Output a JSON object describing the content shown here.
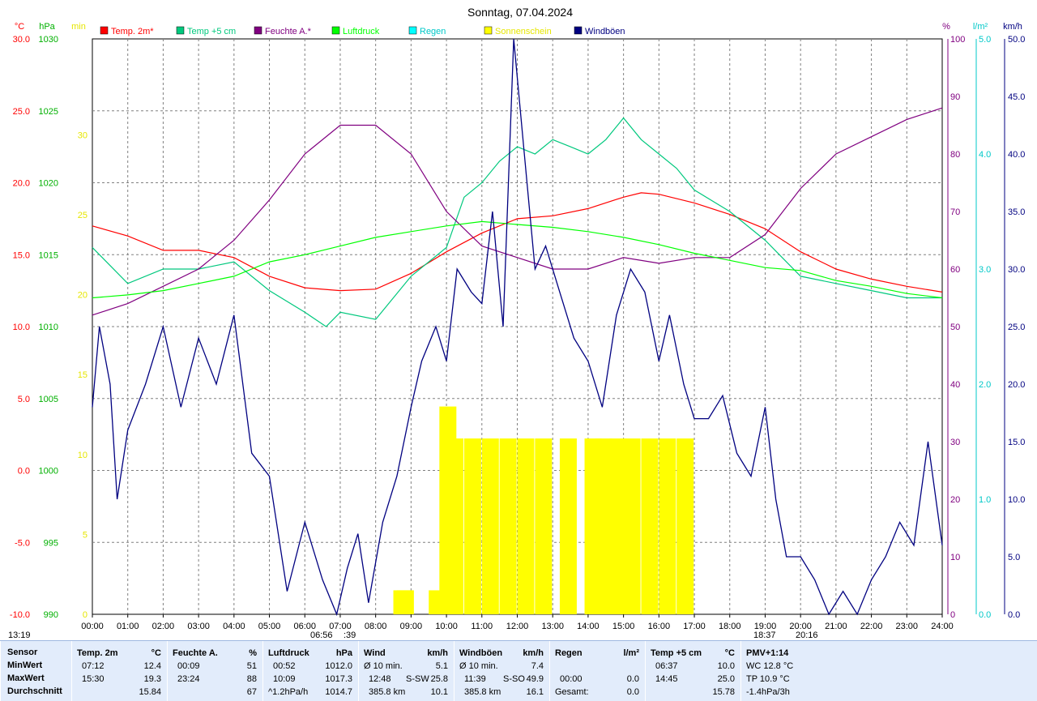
{
  "title": "Sonntag, 07.04.2024",
  "axes": {
    "temp": {
      "unit": "°C",
      "ticks": [
        "30.0",
        "25.0",
        "20.0",
        "15.0",
        "10.0",
        "5.0",
        "0.0",
        "-5.0",
        "-10.0"
      ],
      "color": "#ff0000"
    },
    "pressure": {
      "unit": "hPa",
      "ticks": [
        "1030",
        "1025",
        "1020",
        "1015",
        "1010",
        "1005",
        "1000",
        "995",
        "990"
      ],
      "color": "#00b000"
    },
    "sun": {
      "unit": "min",
      "ticks": [
        "30",
        "25",
        "20",
        "15",
        "10",
        "5",
        "0"
      ],
      "color": "#e6e600"
    },
    "humidity": {
      "unit": "%",
      "ticks": [
        "100",
        "90",
        "80",
        "70",
        "60",
        "50",
        "40",
        "30",
        "20",
        "10",
        "0"
      ],
      "color": "#800080"
    },
    "rain": {
      "unit": "l/m²",
      "ticks": [
        "5.0",
        "4.0",
        "3.0",
        "2.0",
        "1.0",
        "0.0"
      ],
      "color": "#00c8c8"
    },
    "wind": {
      "unit": "km/h",
      "ticks": [
        "50.0",
        "45.0",
        "40.0",
        "35.0",
        "30.0",
        "25.0",
        "20.0",
        "15.0",
        "10.0",
        "5.0",
        "0.0"
      ],
      "color": "#000080"
    }
  },
  "time_ticks": [
    "00:00",
    "01:00",
    "02:00",
    "03:00",
    "04:00",
    "05:00",
    "06:00",
    "07:00",
    "08:00",
    "09:00",
    "10:00",
    "11:00",
    "12:00",
    "13:00",
    "14:00",
    "15:00",
    "16:00",
    "17:00",
    "18:00",
    "19:00",
    "20:00",
    "21:00",
    "22:00",
    "23:00",
    "24:00"
  ],
  "time_markers": {
    "sunrise": "06:56",
    "sunrise_tail": ":39",
    "moon": "18:37",
    "sunset": "20:16",
    "left": "13:19"
  },
  "legend": [
    {
      "label": "Temp. 2m*",
      "color": "#ff0000"
    },
    {
      "label": "Temp +5 cm",
      "color": "#00c87d"
    },
    {
      "label": "Feuchte A.*",
      "color": "#800080"
    },
    {
      "label": "Luftdruck",
      "color": "#00ff00"
    },
    {
      "label": "Regen",
      "color": "#00ffff"
    },
    {
      "label": "Sonnenschein",
      "color": "#ffff00"
    },
    {
      "label": "Windböen",
      "color": "#000080"
    }
  ],
  "chart_data": {
    "type": "line",
    "x_unit": "hours",
    "series": [
      {
        "name": "Temp. 2m*",
        "axis": "°C",
        "color": "#ff0000",
        "x": [
          0,
          1,
          2,
          3,
          4,
          5,
          6,
          7,
          8,
          9,
          10,
          11,
          12,
          13,
          14,
          15,
          15.5,
          16,
          17,
          18,
          19,
          20,
          21,
          22,
          23,
          24
        ],
        "y": [
          17.0,
          16.3,
          15.3,
          15.3,
          14.8,
          13.5,
          12.7,
          12.5,
          12.6,
          13.7,
          15.2,
          16.5,
          17.5,
          17.7,
          18.2,
          19.0,
          19.3,
          19.2,
          18.6,
          17.8,
          16.8,
          15.2,
          14.0,
          13.3,
          12.8,
          12.4
        ]
      },
      {
        "name": "Temp +5 cm",
        "axis": "°C",
        "color": "#00c87d",
        "x": [
          0,
          1,
          2,
          3,
          4,
          5,
          6,
          6.6,
          7,
          8,
          9,
          10,
          10.5,
          11,
          11.5,
          12,
          12.5,
          13,
          13.5,
          14,
          14.5,
          15,
          15.5,
          16,
          16.5,
          17,
          18,
          19,
          20,
          21,
          22,
          23,
          24
        ],
        "y": [
          15.5,
          13.0,
          14.0,
          14.0,
          14.5,
          12.5,
          11.0,
          10.0,
          11.0,
          10.5,
          13.5,
          15.5,
          19.0,
          20.0,
          21.5,
          22.5,
          22.0,
          23.0,
          22.5,
          22.0,
          23.0,
          24.5,
          23.0,
          22.0,
          21.0,
          19.5,
          18.0,
          16.0,
          13.5,
          13.0,
          12.5,
          12.0,
          12.0
        ]
      },
      {
        "name": "Feuchte A.*",
        "axis": "%",
        "color": "#800080",
        "x": [
          0,
          1,
          2,
          3,
          4,
          5,
          6,
          7,
          8,
          9,
          10,
          11,
          12,
          13,
          14,
          15,
          16,
          17,
          18,
          19,
          20,
          21,
          22,
          23,
          24
        ],
        "y": [
          52,
          54,
          57,
          60,
          65,
          72,
          80,
          85,
          85,
          80,
          70,
          64,
          62,
          60,
          60,
          62,
          61,
          62,
          62,
          66,
          74,
          80,
          83,
          86,
          88
        ]
      },
      {
        "name": "Luftdruck",
        "axis": "hPa",
        "color": "#00ff00",
        "x": [
          0,
          1,
          2,
          3,
          4,
          5,
          6,
          7,
          8,
          9,
          10,
          11,
          12,
          13,
          14,
          15,
          16,
          17,
          18,
          19,
          20,
          21,
          22,
          23,
          24
        ],
        "y": [
          1012.0,
          1012.2,
          1012.5,
          1013.0,
          1013.5,
          1014.5,
          1015.0,
          1015.6,
          1016.2,
          1016.6,
          1017.0,
          1017.3,
          1017.1,
          1016.9,
          1016.6,
          1016.2,
          1015.7,
          1015.1,
          1014.6,
          1014.1,
          1013.9,
          1013.2,
          1012.8,
          1012.3,
          1012.0
        ]
      },
      {
        "name": "Windböen",
        "axis": "km/h",
        "color": "#000080",
        "x": [
          0,
          0.2,
          0.5,
          0.7,
          1.0,
          1.5,
          2.0,
          2.5,
          3.0,
          3.5,
          4.0,
          4.5,
          5.0,
          5.5,
          6.0,
          6.5,
          6.9,
          7.2,
          7.5,
          7.8,
          8.2,
          8.6,
          9.0,
          9.3,
          9.7,
          10.0,
          10.3,
          10.7,
          11.0,
          11.3,
          11.6,
          11.9,
          12.2,
          12.5,
          12.8,
          13.2,
          13.6,
          14.0,
          14.4,
          14.8,
          15.2,
          15.6,
          16.0,
          16.3,
          16.7,
          17.0,
          17.4,
          17.8,
          18.2,
          18.6,
          19.0,
          19.3,
          19.6,
          20.0,
          20.4,
          20.8,
          21.2,
          21.6,
          22.0,
          22.4,
          22.8,
          23.2,
          23.6,
          24.0
        ],
        "y": [
          18,
          25,
          20,
          10,
          16,
          20,
          25,
          18,
          24,
          20,
          26,
          14,
          12,
          2,
          8,
          3,
          0,
          4,
          7,
          1,
          8,
          12,
          18,
          22,
          25,
          22,
          30,
          28,
          27,
          35,
          25,
          50,
          40,
          30,
          32,
          28,
          24,
          22,
          18,
          26,
          30,
          28,
          22,
          26,
          20,
          17,
          17,
          19,
          14,
          12,
          18,
          10,
          5,
          5,
          3,
          0,
          2,
          0,
          3,
          5,
          8,
          6,
          15,
          6
        ]
      }
    ],
    "sunshine": {
      "axis": "min",
      "color": "#ffff00",
      "x": [
        8.5,
        8.6,
        9.5,
        9.8,
        10.0,
        10.5,
        11.0,
        11.5,
        12.0,
        12.5,
        13.2,
        13.9,
        14.2,
        14.6,
        15.0,
        15.5,
        16.0,
        16.5
      ],
      "y": [
        1.5,
        1.5,
        1.5,
        13,
        11,
        11,
        11,
        11,
        11,
        11,
        11,
        11,
        11,
        11,
        11,
        11,
        11,
        11
      ]
    },
    "ylim_temp": [
      -10,
      30
    ],
    "ylim_pressure": [
      990,
      1030
    ],
    "ylim_humidity": [
      0,
      100
    ],
    "ylim_rain": [
      0,
      5
    ],
    "ylim_wind": [
      0,
      50
    ],
    "grid": true
  },
  "table": {
    "headers": [
      {
        "name": "Sensor",
        "unit": ""
      },
      {
        "name": "Temp. 2m",
        "unit": "°C"
      },
      {
        "name": "Feuchte A.",
        "unit": "%"
      },
      {
        "name": "Luftdruck",
        "unit": "hPa"
      },
      {
        "name": "Wind",
        "unit": "km/h"
      },
      {
        "name": "Windböen",
        "unit": "km/h"
      },
      {
        "name": "Regen",
        "unit": "l/m²"
      },
      {
        "name": "Temp +5 cm",
        "unit": "°C"
      },
      {
        "name": "PMV+1:14",
        "unit": ""
      }
    ],
    "row_labels": [
      "MinWert",
      "MaxWert",
      "Durchschnitt"
    ],
    "temp2m": [
      [
        "07:12",
        "12.4"
      ],
      [
        "15:30",
        "19.3"
      ],
      [
        "",
        "15.84"
      ]
    ],
    "feuchte": [
      [
        "00:09",
        "51"
      ],
      [
        "23:24",
        "88"
      ],
      [
        "",
        "67"
      ]
    ],
    "druck": [
      [
        "00:52",
        "1012.0"
      ],
      [
        "10:09",
        "1017.3"
      ],
      [
        "^1.2hPa/h",
        "1014.7"
      ]
    ],
    "wind": [
      [
        "Ø 10 min.",
        "",
        "5.1"
      ],
      [
        "12:48",
        "S-SW",
        "25.8"
      ],
      [
        "385.8 km",
        "",
        "10.1"
      ]
    ],
    "boeen": [
      [
        "Ø 10 min.",
        "",
        "7.4"
      ],
      [
        "11:39",
        "S-SO",
        "49.9"
      ],
      [
        "385.8 km",
        "",
        "16.1"
      ]
    ],
    "regen": [
      [
        "",
        ""
      ],
      [
        "00:00",
        "0.0"
      ],
      [
        "Gesamt:",
        "0.0"
      ]
    ],
    "temp5": [
      [
        "06:37",
        "10.0"
      ],
      [
        "14:45",
        "25.0"
      ],
      [
        "",
        "15.78"
      ]
    ],
    "pmv": [
      "WC 12.8 °C",
      "TP 10.9 °C",
      "-1.4hPa/3h"
    ]
  }
}
